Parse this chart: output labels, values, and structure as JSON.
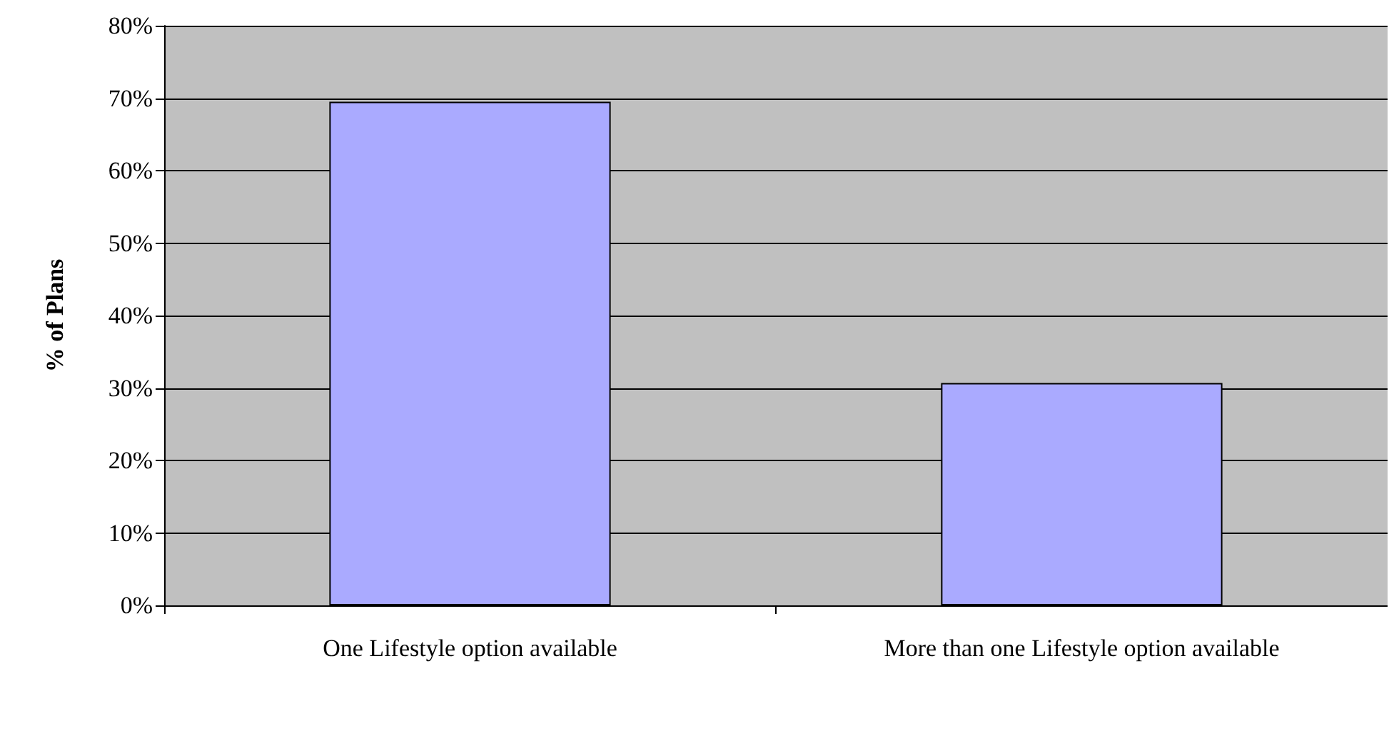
{
  "chart_data": {
    "type": "bar",
    "ylabel": "% of Plans",
    "categories": [
      "One Lifestyle option available",
      "More than one Lifestyle option available"
    ],
    "values": [
      69.5,
      30.7
    ],
    "color": "#aaaaff",
    "ylim": [
      0,
      80
    ],
    "yticks": [
      {
        "value": 0,
        "label": "0%"
      },
      {
        "value": 10,
        "label": "10%"
      },
      {
        "value": 20,
        "label": "20%"
      },
      {
        "value": 30,
        "label": "30%"
      },
      {
        "value": 40,
        "label": "40%"
      },
      {
        "value": 50,
        "label": "50%"
      },
      {
        "value": 60,
        "label": "60%"
      },
      {
        "value": 70,
        "label": "70%"
      },
      {
        "value": 80,
        "label": "80%"
      }
    ],
    "grid": "y"
  }
}
